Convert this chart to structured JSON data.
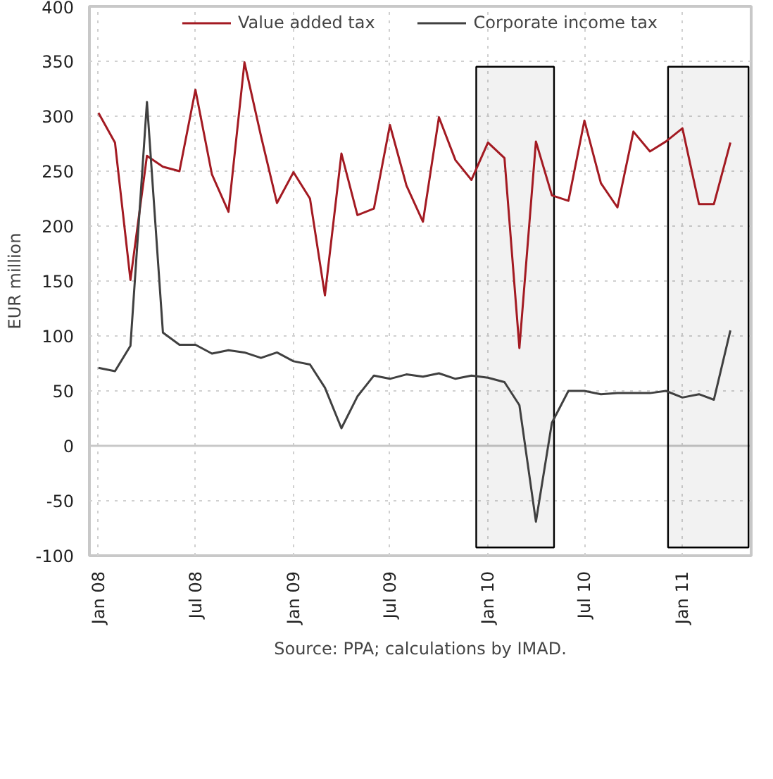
{
  "chart_data": {
    "type": "line",
    "ylabel": "EUR million",
    "x": [
      "2008-01",
      "2008-02",
      "2008-03",
      "2008-04",
      "2008-05",
      "2008-06",
      "2008-07",
      "2008-08",
      "2008-09",
      "2008-10",
      "2008-11",
      "2008-12",
      "2009-01",
      "2009-02",
      "2009-03",
      "2009-04",
      "2009-05",
      "2009-06",
      "2009-07",
      "2009-08",
      "2009-09",
      "2009-10",
      "2009-11",
      "2009-12",
      "2010-01",
      "2010-02",
      "2010-03",
      "2010-04",
      "2010-05",
      "2010-06",
      "2010-07",
      "2010-08",
      "2010-09",
      "2010-10",
      "2010-11",
      "2010-12",
      "2011-01",
      "2011-02",
      "2011-03",
      "2011-04"
    ],
    "series": [
      {
        "name": "Value added tax",
        "color": "#a31a22",
        "values": [
          303,
          276,
          151,
          264,
          254,
          250,
          324,
          247,
          213,
          349,
          282,
          221,
          249,
          225,
          137,
          266,
          210,
          216,
          292,
          237,
          204,
          299,
          260,
          242,
          276,
          262,
          89,
          277,
          228,
          223,
          296,
          239,
          217,
          286,
          268,
          277,
          289,
          220,
          220,
          276
        ]
      },
      {
        "name": "Corporate income tax",
        "color": "#404040",
        "values": [
          71,
          68,
          91,
          313,
          103,
          92,
          92,
          84,
          87,
          85,
          80,
          85,
          77,
          74,
          53,
          16,
          45,
          64,
          61,
          65,
          63,
          66,
          61,
          64,
          62,
          58,
          37,
          -69,
          21,
          50,
          50,
          47,
          48,
          48,
          48,
          50,
          44,
          47,
          42,
          105
        ]
      }
    ],
    "xlim": [
      "2007-12-15",
      "2011-05-10"
    ],
    "xticks": [
      {
        "value": "2008-01",
        "label": "Jan 08"
      },
      {
        "value": "2008-07",
        "label": "Jul 08"
      },
      {
        "value": "2009-01",
        "label": "Jan 09"
      },
      {
        "value": "2009-07",
        "label": "Jul 09"
      },
      {
        "value": "2010-01",
        "label": "Jan 10"
      },
      {
        "value": "2010-07",
        "label": "Jul 10"
      },
      {
        "value": "2011-01",
        "label": "Jan 11"
      }
    ],
    "ylim": [
      -100,
      400
    ],
    "yticks": [
      -100,
      -50,
      0,
      50,
      100,
      150,
      200,
      250,
      300,
      350,
      400
    ],
    "grid": true,
    "legend": "top",
    "line_style": "solid",
    "marker": "none",
    "ref_lines": [
      {
        "axis": "y",
        "value": 0,
        "color": "#c8c8c8",
        "line_style": "solid"
      }
    ],
    "bands": [
      {
        "axis": "x",
        "from": "2009-12-10",
        "to": "2010-05-05",
        "color": "#000000"
      },
      {
        "axis": "x",
        "from": "2010-12-05",
        "to": "2011-05-05",
        "color": "#000000"
      }
    ],
    "annotations": [
      "Source: PPA; calculations by IMAD."
    ]
  }
}
